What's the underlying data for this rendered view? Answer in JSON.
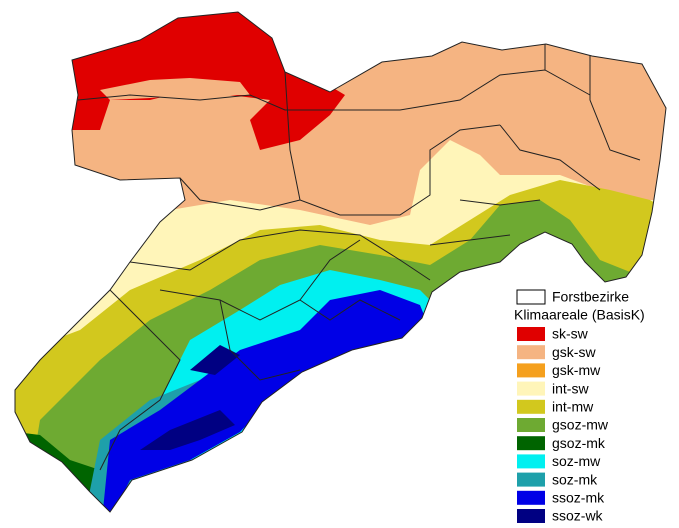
{
  "legend": {
    "boundary_label": "Forstbezirke",
    "title": "Klimaareale (BasisK)",
    "items": [
      {
        "label": "sk-sw",
        "color": "#e00000"
      },
      {
        "label": "gsk-sw",
        "color": "#f5b482"
      },
      {
        "label": "gsk-mw",
        "color": "#f5a01e"
      },
      {
        "label": "int-sw",
        "color": "#fff5b9"
      },
      {
        "label": "int-mw",
        "color": "#d2c81e"
      },
      {
        "label": "gsoz-mw",
        "color": "#6eaa32"
      },
      {
        "label": "gsoz-mk",
        "color": "#006400"
      },
      {
        "label": "soz-mw",
        "color": "#00f0f0"
      },
      {
        "label": "soz-mk",
        "color": "#1ea0aa"
      },
      {
        "label": "ssoz-mk",
        "color": "#0000e6"
      },
      {
        "label": "ssoz-wk",
        "color": "#000082"
      }
    ]
  }
}
